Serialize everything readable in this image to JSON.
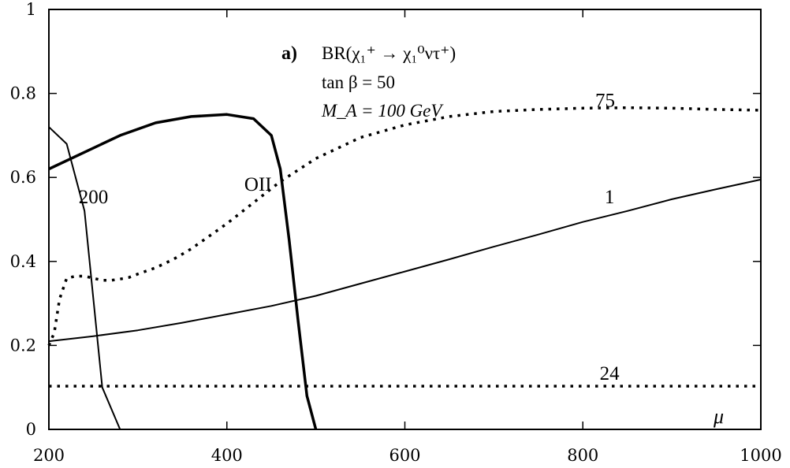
{
  "chart_data": {
    "type": "line",
    "annotation": {
      "panel": "a)",
      "line1": "BR(χ₁⁺ → χ₁⁰ντ⁺)",
      "line2": "tan β = 50",
      "line3": "M_A = 100 GeV"
    },
    "xlabel": "μ",
    "ylabel": "",
    "xlim": [
      200,
      1000
    ],
    "ylim": [
      0,
      1
    ],
    "xticks": [
      200,
      400,
      600,
      800,
      1000
    ],
    "yticks": [
      0,
      0.2,
      0.4,
      0.6,
      0.8,
      1
    ],
    "grid": false,
    "series": [
      {
        "name": "75",
        "style": "dotted",
        "x": [
          200,
          206,
          212,
          220,
          230,
          240,
          250,
          260,
          270,
          280,
          290,
          300,
          320,
          340,
          360,
          380,
          400,
          430,
          460,
          500,
          550,
          600,
          650,
          700,
          750,
          800,
          850,
          900,
          950,
          1000
        ],
        "y": [
          0.2,
          0.23,
          0.31,
          0.36,
          0.365,
          0.365,
          0.36,
          0.355,
          0.355,
          0.358,
          0.362,
          0.37,
          0.385,
          0.405,
          0.43,
          0.46,
          0.49,
          0.54,
          0.59,
          0.645,
          0.695,
          0.725,
          0.745,
          0.757,
          0.762,
          0.765,
          0.766,
          0.765,
          0.762,
          0.76
        ]
      },
      {
        "name": "1",
        "style": "solid",
        "x": [
          200,
          250,
          300,
          350,
          400,
          450,
          500,
          550,
          600,
          650,
          700,
          750,
          800,
          850,
          900,
          950,
          1000
        ],
        "y": [
          0.21,
          0.222,
          0.236,
          0.254,
          0.274,
          0.294,
          0.318,
          0.347,
          0.376,
          0.405,
          0.435,
          0.464,
          0.494,
          0.52,
          0.548,
          0.572,
          0.595
        ]
      },
      {
        "name": "24",
        "style": "dotted",
        "x": [
          200,
          1000
        ],
        "y": [
          0.103,
          0.103
        ]
      },
      {
        "name": "200",
        "style": "solid",
        "x": [
          200,
          220,
          240,
          260,
          280
        ],
        "y": [
          0.72,
          0.68,
          0.52,
          0.1,
          0.0
        ]
      },
      {
        "name": "OII",
        "style": "solid-thick",
        "x": [
          200,
          240,
          280,
          320,
          360,
          400,
          430,
          450,
          460,
          470,
          480,
          490,
          500
        ],
        "y": [
          0.62,
          0.66,
          0.7,
          0.73,
          0.745,
          0.75,
          0.74,
          0.7,
          0.62,
          0.45,
          0.26,
          0.08,
          0.0
        ]
      }
    ],
    "curve_labels": [
      {
        "text": "75",
        "x": 825,
        "y": 0.785
      },
      {
        "text": "1",
        "x": 830,
        "y": 0.555
      },
      {
        "text": "24",
        "x": 830,
        "y": 0.135
      },
      {
        "text": "200",
        "x": 250,
        "y": 0.555
      },
      {
        "text": "OII",
        "x": 435,
        "y": 0.585
      }
    ]
  }
}
